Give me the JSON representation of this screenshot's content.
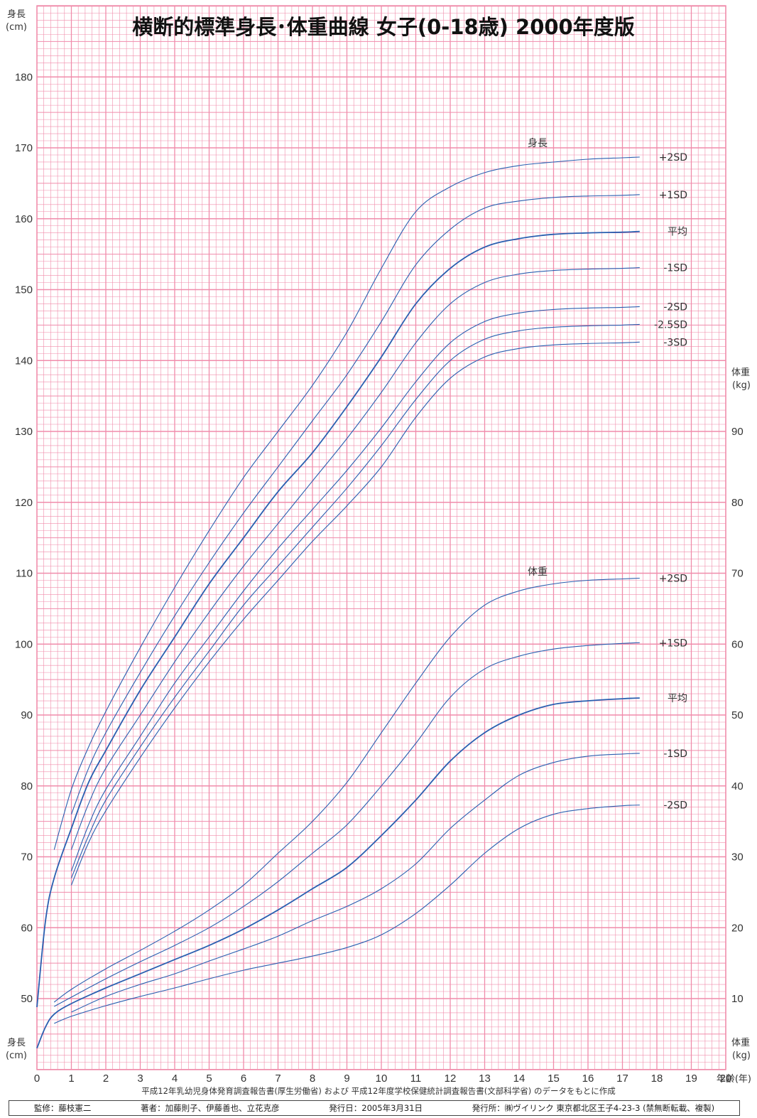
{
  "title": "横断的標準身長･体重曲線 女子(0-18歳) 2000年度版",
  "left_axis_labels": {
    "top_name": "身長",
    "top_unit": "(cm)",
    "bottom_name": "身長",
    "bottom_unit": "(cm)"
  },
  "right_axis_labels": {
    "top_name": "体重",
    "top_unit": "(kg)",
    "bottom_name": "体重",
    "bottom_unit": "(kg)"
  },
  "x_axis_label": "年齢(年)",
  "section_labels": {
    "height": "身長",
    "weight": "体重"
  },
  "source_note": "平成12年乳幼児身体発育調査報告書(厚生労働省) および 平成12年度学校保健統計調査報告書(文部科学省) のデータをもとに作成",
  "credits": {
    "supervisor": "監修：藤枝憲二",
    "authors": "著者：加藤則子、伊藤善也、立花克彦",
    "issued": "発行日：2005年3月31日",
    "publisher": "発行所：㈱ヴイリンク 東京都北区王子4-23-3 (禁無断転載、複製)"
  },
  "colors": {
    "grid": "#f08cab",
    "curve": "#2a5fb0",
    "background": "#ffffff"
  },
  "chart_data": {
    "type": "line",
    "x_ticks": [
      "0",
      "1",
      "2",
      "3",
      "4",
      "5",
      "6",
      "7",
      "8",
      "9",
      "10",
      "11",
      "12",
      "13",
      "14",
      "15",
      "16",
      "17",
      "18",
      "19",
      "20"
    ],
    "xlim": [
      0,
      20
    ],
    "y_left_ticks": [
      "50",
      "60",
      "70",
      "80",
      "90",
      "100",
      "110",
      "120",
      "130",
      "140",
      "150",
      "160",
      "170",
      "180"
    ],
    "ylim_left": [
      45,
      185
    ],
    "y_right_ticks": [
      "10",
      "20",
      "30",
      "40",
      "50",
      "60",
      "70",
      "80",
      "90"
    ],
    "ylim_right": [
      5,
      145
    ],
    "grid": true,
    "height_series": [
      {
        "name": "+2SD",
        "x": [
          0.5,
          1,
          1.5,
          2,
          3,
          4,
          5,
          6,
          7,
          8,
          9,
          10,
          11,
          12,
          13,
          14,
          15,
          16,
          17,
          17.5
        ],
        "y": [
          71,
          79.5,
          85.5,
          90.5,
          99.5,
          108,
          116,
          123.5,
          130,
          136.5,
          144,
          153,
          161,
          164.5,
          166.5,
          167.5,
          168,
          168.4,
          168.6,
          168.7
        ]
      },
      {
        "name": "+1SD",
        "x": [
          1,
          1.5,
          2,
          3,
          4,
          5,
          6,
          7,
          8,
          9,
          10,
          11,
          12,
          13,
          14,
          15,
          16,
          17,
          17.5
        ],
        "y": [
          76,
          82.5,
          87.5,
          96,
          104,
          111.5,
          118.5,
          125,
          131.5,
          138,
          145.5,
          153.5,
          158.5,
          161.5,
          162.5,
          163,
          163.2,
          163.3,
          163.4
        ]
      },
      {
        "name": "平均",
        "x": [
          0,
          0.25,
          0.5,
          1,
          1.5,
          2,
          3,
          4,
          5,
          6,
          7,
          8,
          9,
          10,
          11,
          12,
          13,
          14,
          15,
          16,
          17,
          17.5
        ],
        "y": [
          48.8,
          61,
          67,
          74,
          80.5,
          85,
          93.5,
          101,
          108.5,
          115,
          121.5,
          127,
          133.5,
          140.5,
          148,
          153,
          156,
          157.2,
          157.8,
          158,
          158.1,
          158.2
        ]
      },
      {
        "name": "-1SD",
        "x": [
          1,
          1.5,
          2,
          3,
          4,
          5,
          6,
          7,
          8,
          9,
          10,
          11,
          12,
          13,
          14,
          15,
          16,
          17,
          17.5
        ],
        "y": [
          71,
          77.5,
          82.5,
          90,
          97.5,
          104.5,
          111,
          117,
          123,
          129,
          135.5,
          142.5,
          148,
          151,
          152.2,
          152.7,
          152.9,
          153,
          153.1
        ]
      },
      {
        "name": "-2SD",
        "x": [
          1,
          1.5,
          2,
          3,
          4,
          5,
          6,
          7,
          8,
          9,
          10,
          11,
          12,
          13,
          14,
          15,
          16,
          17,
          17.5
        ],
        "y": [
          68,
          74.5,
          79.5,
          87,
          94.5,
          101,
          107.5,
          113.5,
          119,
          124.5,
          130.5,
          137,
          142.5,
          145.5,
          146.7,
          147.2,
          147.4,
          147.5,
          147.6
        ]
      },
      {
        "name": "-2.5SD",
        "x": [
          1,
          1.5,
          2,
          3,
          4,
          5,
          6,
          7,
          8,
          9,
          10,
          11,
          12,
          13,
          14,
          15,
          16,
          17,
          17.5
        ],
        "y": [
          67,
          73,
          78,
          85.5,
          92.5,
          99,
          105.5,
          111,
          116.5,
          122,
          128,
          134.5,
          140,
          143,
          144.2,
          144.7,
          144.9,
          145,
          145.1
        ]
      },
      {
        "name": "-3SD",
        "x": [
          1,
          1.5,
          2,
          3,
          4,
          5,
          6,
          7,
          8,
          9,
          10,
          11,
          12,
          13,
          14,
          15,
          16,
          17,
          17.5
        ],
        "y": [
          66,
          72,
          76.5,
          84,
          91,
          97.5,
          103.5,
          109,
          114.5,
          119.5,
          125,
          132,
          137.5,
          140.5,
          141.7,
          142.2,
          142.4,
          142.5,
          142.6
        ]
      }
    ],
    "weight_series": [
      {
        "name": "+2SD",
        "x": [
          0.5,
          1,
          2,
          3,
          4,
          5,
          6,
          7,
          8,
          9,
          10,
          11,
          12,
          13,
          14,
          15,
          16,
          17,
          17.5
        ],
        "y": [
          9.5,
          11.3,
          14.2,
          16.8,
          19.5,
          22.5,
          26,
          30.5,
          35,
          40.5,
          47.5,
          54.5,
          61,
          65.5,
          67.5,
          68.5,
          69,
          69.2,
          69.3
        ]
      },
      {
        "name": "+1SD",
        "x": [
          0.5,
          1,
          2,
          3,
          4,
          5,
          6,
          7,
          8,
          9,
          10,
          11,
          12,
          13,
          14,
          15,
          16,
          17,
          17.5
        ],
        "y": [
          8.9,
          10.2,
          12.8,
          15.2,
          17.5,
          20,
          23,
          26.5,
          30.5,
          34.5,
          40,
          46,
          52.5,
          56.5,
          58.3,
          59.3,
          59.8,
          60.1,
          60.2
        ]
      },
      {
        "name": "平均",
        "x": [
          0,
          0.25,
          0.5,
          1,
          2,
          3,
          4,
          5,
          6,
          7,
          8,
          9,
          10,
          11,
          12,
          13,
          14,
          15,
          16,
          17,
          17.5
        ],
        "y": [
          3,
          6,
          7.8,
          9.3,
          11.5,
          13.5,
          15.5,
          17.5,
          19.8,
          22.5,
          25.5,
          28.5,
          33,
          38,
          43.5,
          47.5,
          50,
          51.5,
          52,
          52.3,
          52.4
        ]
      },
      {
        "name": "-1SD",
        "x": [
          1,
          2,
          3,
          4,
          5,
          6,
          7,
          8,
          9,
          10,
          11,
          12,
          13,
          14,
          15,
          16,
          17,
          17.5
        ],
        "y": [
          8.1,
          10.3,
          12,
          13.5,
          15.3,
          17,
          18.8,
          21,
          23,
          25.5,
          29,
          34,
          38,
          41.5,
          43.3,
          44.2,
          44.5,
          44.6
        ]
      },
      {
        "name": "-2SD",
        "x": [
          0.5,
          1,
          2,
          3,
          4,
          5,
          6,
          7,
          8,
          9,
          10,
          11,
          12,
          13,
          14,
          15,
          16,
          17,
          17.5
        ],
        "y": [
          6.5,
          7.5,
          9,
          10.3,
          11.5,
          12.8,
          14,
          15,
          16,
          17.2,
          19,
          22,
          26,
          30.5,
          34,
          36,
          36.8,
          37.2,
          37.3
        ]
      }
    ],
    "height_labels": [
      "+2SD",
      "+1SD",
      "平均",
      "-1SD",
      "-2SD",
      "-2.5SD",
      "-3SD"
    ],
    "weight_labels": [
      "+2SD",
      "+1SD",
      "平均",
      "-1SD",
      "-2SD"
    ]
  }
}
